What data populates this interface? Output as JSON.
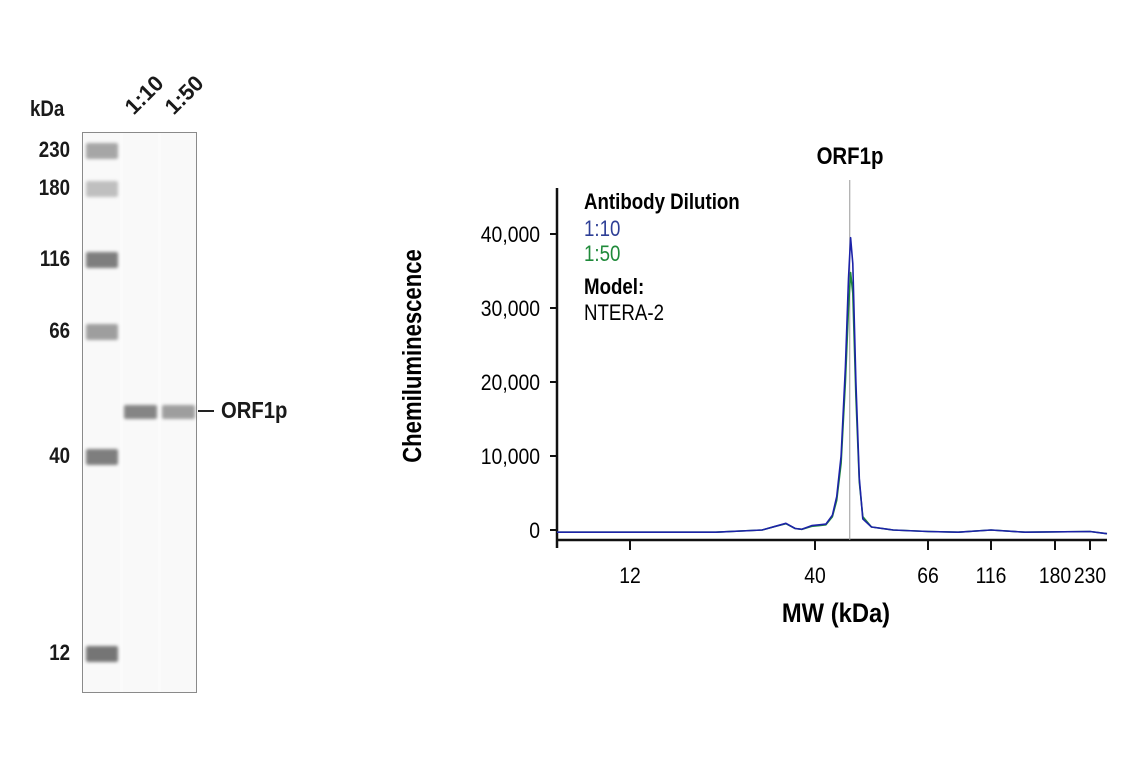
{
  "gel": {
    "unit_label": "kDa",
    "lanes": [
      "1:10",
      "1:50"
    ],
    "markers": [
      {
        "label": "230",
        "intensity": 0.5
      },
      {
        "label": "180",
        "intensity": 0.35
      },
      {
        "label": "116",
        "intensity": 0.75
      },
      {
        "label": "66",
        "intensity": 0.55
      },
      {
        "label": "40",
        "intensity": 0.75
      },
      {
        "label": "12",
        "intensity": 0.8
      }
    ],
    "target_label": "ORF1p",
    "target_band_intensity": {
      "1:10": 0.7,
      "1:50": 0.55
    },
    "band_color": "#555555"
  },
  "chart_data": {
    "type": "line",
    "title": "",
    "xlabel": "MW (kDa)",
    "ylabel": "Chemiluminescence",
    "x_ticks": [
      12,
      40,
      66,
      116,
      180,
      230
    ],
    "x_tick_labels": [
      "12",
      "40",
      "66",
      "116",
      "180",
      "230"
    ],
    "y_ticks": [
      0,
      10000,
      20000,
      30000,
      40000
    ],
    "y_tick_labels": [
      "0",
      "10,000",
      "20,000",
      "30,000",
      "40,000"
    ],
    "ylim": [
      -1000,
      46000
    ],
    "xlim": [
      1,
      254
    ],
    "grid": false,
    "annotation": {
      "label": "ORF1p",
      "x": 48
    },
    "legend": {
      "title": "Antibody Dilution",
      "model_title": "Model:",
      "model_value": "NTERA-2",
      "placement": "top-left"
    },
    "series": [
      {
        "name": "1:10",
        "color": "#1c22a8",
        "label_color": "#2e3f96",
        "points": [
          [
            1,
            -300
          ],
          [
            12,
            -300
          ],
          [
            25,
            -300
          ],
          [
            32,
            0
          ],
          [
            34,
            500
          ],
          [
            35.6,
            900
          ],
          [
            37,
            200
          ],
          [
            38,
            100
          ],
          [
            39.5,
            600
          ],
          [
            41,
            700
          ],
          [
            42.5,
            800
          ],
          [
            44,
            2000
          ],
          [
            45,
            4500
          ],
          [
            46,
            10000
          ],
          [
            47,
            22000
          ],
          [
            47.7,
            34000
          ],
          [
            48.2,
            39500
          ],
          [
            48.7,
            36000
          ],
          [
            49.4,
            20000
          ],
          [
            50.2,
            7000
          ],
          [
            51,
            1500
          ],
          [
            53,
            400
          ],
          [
            58,
            0
          ],
          [
            66,
            -200
          ],
          [
            90,
            -300
          ],
          [
            116,
            0
          ],
          [
            150,
            -300
          ],
          [
            230,
            -200
          ],
          [
            254,
            -500
          ]
        ]
      },
      {
        "name": "1:50",
        "color": "#1f8a3a",
        "label_color": "#1f8a3a",
        "points": [
          [
            1,
            -300
          ],
          [
            12,
            -300
          ],
          [
            25,
            -300
          ],
          [
            32,
            0
          ],
          [
            34,
            500
          ],
          [
            35.6,
            850
          ],
          [
            37,
            200
          ],
          [
            38,
            100
          ],
          [
            39.5,
            500
          ],
          [
            41,
            600
          ],
          [
            42.5,
            700
          ],
          [
            44,
            1800
          ],
          [
            45,
            4000
          ],
          [
            46,
            9000
          ],
          [
            47,
            20000
          ],
          [
            47.7,
            30000
          ],
          [
            48.2,
            34800
          ],
          [
            48.7,
            32000
          ],
          [
            49.4,
            18000
          ],
          [
            50.2,
            6500
          ],
          [
            51,
            1800
          ],
          [
            53,
            400
          ],
          [
            58,
            0
          ],
          [
            66,
            -200
          ],
          [
            90,
            -300
          ],
          [
            116,
            0
          ],
          [
            150,
            -300
          ],
          [
            230,
            -200
          ],
          [
            254,
            -500
          ]
        ]
      }
    ]
  }
}
